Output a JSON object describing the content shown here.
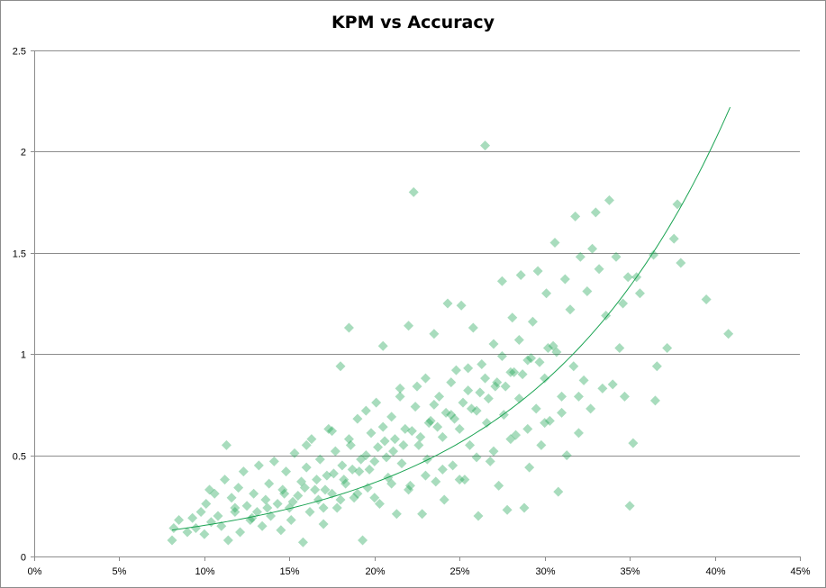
{
  "chart_data": {
    "type": "scatter",
    "title": "KPM vs Accuracy",
    "xlabel": "",
    "ylabel": "",
    "xlim": [
      0,
      0.45
    ],
    "ylim": [
      0,
      2.5
    ],
    "x_ticks": [
      0,
      0.05,
      0.1,
      0.15,
      0.2,
      0.25,
      0.3,
      0.35,
      0.4,
      0.45
    ],
    "x_tick_labels": [
      "0%",
      "5%",
      "10%",
      "15%",
      "20%",
      "25%",
      "30%",
      "35%",
      "40%",
      "45%"
    ],
    "y_ticks": [
      0,
      0.5,
      1,
      1.5,
      2,
      2.5
    ],
    "y_tick_labels": [
      "0",
      "0.5",
      "1",
      "1.5",
      "2",
      "2.5"
    ],
    "grid": "horizontal",
    "legend": "none",
    "marker": "diamond",
    "colors": {
      "points": "#1aa352",
      "trendline": "#1aa352",
      "grid": "#8c8c8c"
    },
    "series": [
      {
        "points": [
          [
            0.081,
            0.08
          ],
          [
            0.082,
            0.14
          ],
          [
            0.085,
            0.18
          ],
          [
            0.09,
            0.12
          ],
          [
            0.093,
            0.19
          ],
          [
            0.095,
            0.14
          ],
          [
            0.098,
            0.22
          ],
          [
            0.1,
            0.11
          ],
          [
            0.101,
            0.26
          ],
          [
            0.103,
            0.33
          ],
          [
            0.104,
            0.17
          ],
          [
            0.106,
            0.31
          ],
          [
            0.108,
            0.2
          ],
          [
            0.11,
            0.15
          ],
          [
            0.112,
            0.38
          ],
          [
            0.113,
            0.55
          ],
          [
            0.114,
            0.08
          ],
          [
            0.116,
            0.29
          ],
          [
            0.118,
            0.22
          ],
          [
            0.12,
            0.34
          ],
          [
            0.121,
            0.12
          ],
          [
            0.123,
            0.42
          ],
          [
            0.125,
            0.25
          ],
          [
            0.127,
            0.18
          ],
          [
            0.129,
            0.31
          ],
          [
            0.131,
            0.22
          ],
          [
            0.132,
            0.45
          ],
          [
            0.134,
            0.15
          ],
          [
            0.136,
            0.28
          ],
          [
            0.138,
            0.36
          ],
          [
            0.139,
            0.2
          ],
          [
            0.141,
            0.47
          ],
          [
            0.143,
            0.26
          ],
          [
            0.145,
            0.13
          ],
          [
            0.146,
            0.33
          ],
          [
            0.148,
            0.42
          ],
          [
            0.15,
            0.24
          ],
          [
            0.151,
            0.18
          ],
          [
            0.153,
            0.51
          ],
          [
            0.155,
            0.3
          ],
          [
            0.157,
            0.37
          ],
          [
            0.158,
            0.07
          ],
          [
            0.16,
            0.44
          ],
          [
            0.162,
            0.22
          ],
          [
            0.163,
            0.58
          ],
          [
            0.165,
            0.33
          ],
          [
            0.167,
            0.28
          ],
          [
            0.168,
            0.48
          ],
          [
            0.17,
            0.16
          ],
          [
            0.172,
            0.4
          ],
          [
            0.173,
            0.63
          ],
          [
            0.175,
            0.31
          ],
          [
            0.177,
            0.52
          ],
          [
            0.178,
            0.24
          ],
          [
            0.18,
            0.94
          ],
          [
            0.181,
            0.45
          ],
          [
            0.183,
            0.36
          ],
          [
            0.185,
            1.13
          ],
          [
            0.186,
            0.55
          ],
          [
            0.188,
            0.29
          ],
          [
            0.19,
            0.68
          ],
          [
            0.191,
            0.42
          ],
          [
            0.193,
            0.08
          ],
          [
            0.195,
            0.5
          ],
          [
            0.196,
            0.34
          ],
          [
            0.198,
            0.61
          ],
          [
            0.2,
            0.47
          ],
          [
            0.201,
            0.76
          ],
          [
            0.203,
            0.26
          ],
          [
            0.205,
            1.04
          ],
          [
            0.206,
            0.57
          ],
          [
            0.208,
            0.39
          ],
          [
            0.21,
            0.69
          ],
          [
            0.211,
            0.52
          ],
          [
            0.213,
            0.21
          ],
          [
            0.215,
            0.83
          ],
          [
            0.216,
            0.46
          ],
          [
            0.218,
            0.63
          ],
          [
            0.22,
            1.14
          ],
          [
            0.221,
            0.35
          ],
          [
            0.223,
            1.8
          ],
          [
            0.224,
            0.74
          ],
          [
            0.226,
            0.55
          ],
          [
            0.228,
            0.21
          ],
          [
            0.23,
            0.88
          ],
          [
            0.231,
            0.48
          ],
          [
            0.233,
            0.67
          ],
          [
            0.235,
            1.1
          ],
          [
            0.236,
            0.37
          ],
          [
            0.238,
            0.79
          ],
          [
            0.24,
            0.59
          ],
          [
            0.241,
            0.28
          ],
          [
            0.243,
            1.25
          ],
          [
            0.245,
            0.7
          ],
          [
            0.246,
            0.45
          ],
          [
            0.248,
            0.92
          ],
          [
            0.25,
            0.63
          ],
          [
            0.251,
            1.24
          ],
          [
            0.253,
            0.38
          ],
          [
            0.255,
            0.82
          ],
          [
            0.256,
            0.55
          ],
          [
            0.258,
            1.13
          ],
          [
            0.26,
            0.72
          ],
          [
            0.261,
            0.2
          ],
          [
            0.263,
            0.95
          ],
          [
            0.265,
            2.03
          ],
          [
            0.266,
            0.66
          ],
          [
            0.268,
            0.47
          ],
          [
            0.27,
            1.05
          ],
          [
            0.271,
            0.84
          ],
          [
            0.273,
            0.35
          ],
          [
            0.275,
            1.36
          ],
          [
            0.276,
            0.7
          ],
          [
            0.278,
            0.23
          ],
          [
            0.28,
            0.91
          ],
          [
            0.281,
            1.18
          ],
          [
            0.283,
            0.6
          ],
          [
            0.285,
            0.78
          ],
          [
            0.286,
            1.39
          ],
          [
            0.288,
            0.24
          ],
          [
            0.29,
            0.97
          ],
          [
            0.291,
            0.44
          ],
          [
            0.293,
            1.16
          ],
          [
            0.295,
            0.73
          ],
          [
            0.296,
            1.41
          ],
          [
            0.298,
            0.55
          ],
          [
            0.3,
            0.88
          ],
          [
            0.301,
            1.3
          ],
          [
            0.303,
            0.67
          ],
          [
            0.305,
            1.04
          ],
          [
            0.306,
            1.55
          ],
          [
            0.308,
            0.32
          ],
          [
            0.31,
            0.79
          ],
          [
            0.312,
            1.37
          ],
          [
            0.313,
            0.5
          ],
          [
            0.315,
            1.22
          ],
          [
            0.317,
            0.94
          ],
          [
            0.318,
            1.68
          ],
          [
            0.32,
            0.61
          ],
          [
            0.321,
            1.48
          ],
          [
            0.323,
            0.87
          ],
          [
            0.325,
            1.31
          ],
          [
            0.327,
            0.73
          ],
          [
            0.328,
            1.52
          ],
          [
            0.33,
            1.7
          ],
          [
            0.332,
            1.42
          ],
          [
            0.334,
            0.83
          ],
          [
            0.336,
            1.19
          ],
          [
            0.338,
            1.76
          ],
          [
            0.34,
            0.85
          ],
          [
            0.342,
            1.48
          ],
          [
            0.344,
            1.03
          ],
          [
            0.346,
            1.25
          ],
          [
            0.347,
            0.79
          ],
          [
            0.349,
            1.38
          ],
          [
            0.35,
            0.25
          ],
          [
            0.352,
            0.56
          ],
          [
            0.354,
            1.38
          ],
          [
            0.356,
            1.3
          ],
          [
            0.364,
            1.49
          ],
          [
            0.365,
            0.77
          ],
          [
            0.366,
            0.94
          ],
          [
            0.372,
            1.03
          ],
          [
            0.378,
            1.74
          ],
          [
            0.376,
            1.57
          ],
          [
            0.38,
            1.45
          ],
          [
            0.395,
            1.27
          ],
          [
            0.408,
            1.1
          ],
          [
            0.118,
            0.24
          ],
          [
            0.128,
            0.19
          ],
          [
            0.137,
            0.24
          ],
          [
            0.147,
            0.31
          ],
          [
            0.152,
            0.27
          ],
          [
            0.159,
            0.34
          ],
          [
            0.166,
            0.38
          ],
          [
            0.171,
            0.33
          ],
          [
            0.176,
            0.41
          ],
          [
            0.182,
            0.38
          ],
          [
            0.187,
            0.43
          ],
          [
            0.192,
            0.48
          ],
          [
            0.197,
            0.43
          ],
          [
            0.202,
            0.54
          ],
          [
            0.207,
            0.49
          ],
          [
            0.212,
            0.58
          ],
          [
            0.217,
            0.55
          ],
          [
            0.222,
            0.62
          ],
          [
            0.227,
            0.59
          ],
          [
            0.232,
            0.66
          ],
          [
            0.237,
            0.64
          ],
          [
            0.242,
            0.71
          ],
          [
            0.247,
            0.68
          ],
          [
            0.252,
            0.76
          ],
          [
            0.257,
            0.73
          ],
          [
            0.262,
            0.81
          ],
          [
            0.267,
            0.78
          ],
          [
            0.272,
            0.86
          ],
          [
            0.277,
            0.84
          ],
          [
            0.282,
            0.91
          ],
          [
            0.287,
            0.9
          ],
          [
            0.292,
            0.98
          ],
          [
            0.297,
            0.96
          ],
          [
            0.302,
            1.03
          ],
          [
            0.307,
            1.01
          ],
          [
            0.16,
            0.55
          ],
          [
            0.175,
            0.62
          ],
          [
            0.185,
            0.58
          ],
          [
            0.195,
            0.72
          ],
          [
            0.205,
            0.64
          ],
          [
            0.215,
            0.79
          ],
          [
            0.225,
            0.84
          ],
          [
            0.235,
            0.75
          ],
          [
            0.245,
            0.86
          ],
          [
            0.255,
            0.93
          ],
          [
            0.265,
            0.88
          ],
          [
            0.275,
            0.99
          ],
          [
            0.285,
            1.07
          ],
          [
            0.17,
            0.24
          ],
          [
            0.18,
            0.28
          ],
          [
            0.19,
            0.31
          ],
          [
            0.2,
            0.29
          ],
          [
            0.21,
            0.36
          ],
          [
            0.22,
            0.33
          ],
          [
            0.23,
            0.4
          ],
          [
            0.24,
            0.43
          ],
          [
            0.25,
            0.38
          ],
          [
            0.26,
            0.49
          ],
          [
            0.27,
            0.52
          ],
          [
            0.28,
            0.58
          ],
          [
            0.29,
            0.63
          ],
          [
            0.3,
            0.66
          ],
          [
            0.31,
            0.71
          ],
          [
            0.32,
            0.79
          ]
        ]
      }
    ],
    "trendline": {
      "type": "exponential",
      "a": 0.0648,
      "b": 8.64,
      "x_range": [
        0.081,
        0.409
      ]
    }
  }
}
